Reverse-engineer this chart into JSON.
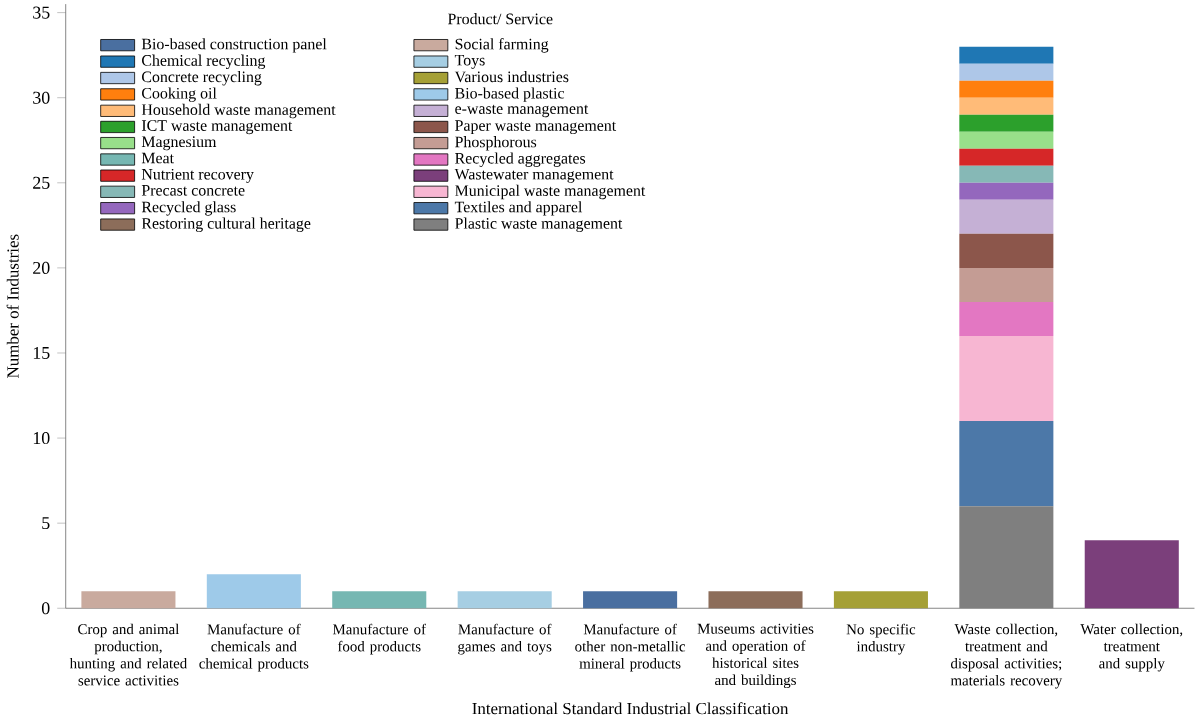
{
  "chart_data": {
    "type": "bar",
    "stacked": true,
    "xlabel": "International Standard Industrial Classification",
    "ylabel": "Number of Industries",
    "legend_title": "Product/ Service",
    "legend": "top left",
    "categories": [
      "Crop and animal production, hunting and related service activities",
      "Manufacture of chemicals and chemical products",
      "Manufacture of food products",
      "Manufacture of games and toys",
      "Manufacture of other non-metallic mineral products",
      "Museums activities and operation of historical sites and buildings",
      "No specific industry",
      "Waste collection, treatment and disposal activities; materials recovery",
      "Water collection, treatment and supply"
    ],
    "ylim": [
      0,
      35.5
    ],
    "yticks": [
      0,
      5,
      10,
      15,
      20,
      25,
      30,
      35
    ],
    "grid": false,
    "series": [
      {
        "name": "Plastic waste management",
        "color": "#7f7f7f",
        "values": [
          null,
          null,
          null,
          null,
          null,
          null,
          null,
          6,
          null
        ]
      },
      {
        "name": "Textiles and apparel",
        "color": "#4c78a8",
        "values": [
          null,
          null,
          null,
          null,
          null,
          null,
          null,
          5,
          null
        ]
      },
      {
        "name": "Municipal waste management",
        "color": "#f7b6d2",
        "values": [
          null,
          null,
          null,
          null,
          null,
          null,
          null,
          5,
          null
        ]
      },
      {
        "name": "Wastewater management",
        "color": "#7b3f7b",
        "values": [
          null,
          null,
          null,
          null,
          null,
          null,
          null,
          null,
          4
        ]
      },
      {
        "name": "Recycled aggregates",
        "color": "#e377c2",
        "values": [
          null,
          null,
          null,
          null,
          null,
          null,
          null,
          2,
          null
        ]
      },
      {
        "name": "Phosphorous",
        "color": "#c49c94",
        "values": [
          null,
          null,
          null,
          null,
          null,
          null,
          null,
          2,
          null
        ]
      },
      {
        "name": "Paper waste management",
        "color": "#8c564b",
        "values": [
          null,
          null,
          null,
          null,
          null,
          null,
          null,
          2,
          null
        ]
      },
      {
        "name": "e-waste management",
        "color": "#c5b0d5",
        "values": [
          null,
          null,
          null,
          null,
          null,
          null,
          null,
          2,
          null
        ]
      },
      {
        "name": "Bio-based plastic",
        "color": "#9ecae9",
        "values": [
          null,
          2,
          null,
          null,
          null,
          null,
          null,
          null,
          null
        ]
      },
      {
        "name": "Various industries",
        "color": "#a5a036",
        "values": [
          null,
          null,
          null,
          null,
          null,
          null,
          1,
          null,
          null
        ]
      },
      {
        "name": "Toys",
        "color": "#a6cee3",
        "values": [
          null,
          null,
          null,
          1,
          null,
          null,
          null,
          null,
          null
        ]
      },
      {
        "name": "Social farming",
        "color": "#c9aa9e",
        "values": [
          1,
          null,
          null,
          null,
          null,
          null,
          null,
          null,
          null
        ]
      },
      {
        "name": "Restoring cultural heritage",
        "color": "#8c6d5a",
        "values": [
          null,
          null,
          null,
          null,
          null,
          1,
          null,
          null,
          null
        ]
      },
      {
        "name": "Recycled glass",
        "color": "#9467bd",
        "values": [
          null,
          null,
          null,
          null,
          null,
          null,
          null,
          1,
          null
        ]
      },
      {
        "name": "Precast concrete",
        "color": "#86b8b6",
        "values": [
          null,
          null,
          null,
          null,
          null,
          null,
          null,
          1,
          null
        ]
      },
      {
        "name": "Nutrient recovery",
        "color": "#d62728",
        "values": [
          null,
          null,
          null,
          null,
          null,
          null,
          null,
          1,
          null
        ]
      },
      {
        "name": "Meat",
        "color": "#76b7b2",
        "values": [
          null,
          null,
          1,
          null,
          null,
          null,
          null,
          null,
          null
        ]
      },
      {
        "name": "Magnesium",
        "color": "#98df8a",
        "values": [
          null,
          null,
          null,
          null,
          null,
          null,
          null,
          1,
          null
        ]
      },
      {
        "name": "ICT waste management",
        "color": "#2ca02c",
        "values": [
          null,
          null,
          null,
          null,
          null,
          null,
          null,
          1,
          null
        ]
      },
      {
        "name": "Household waste management",
        "color": "#ffbb78",
        "values": [
          null,
          null,
          null,
          null,
          null,
          null,
          null,
          1,
          null
        ]
      },
      {
        "name": "Cooking oil",
        "color": "#ff7f0e",
        "values": [
          null,
          null,
          null,
          null,
          null,
          null,
          null,
          1,
          null
        ]
      },
      {
        "name": "Concrete recycling",
        "color": "#aec7e8",
        "values": [
          null,
          null,
          null,
          null,
          null,
          null,
          null,
          1,
          null
        ]
      },
      {
        "name": "Chemical recycling",
        "color": "#1f77b4",
        "values": [
          null,
          null,
          null,
          null,
          null,
          null,
          null,
          1,
          null
        ]
      },
      {
        "name": "Bio-based construction panel",
        "color": "#4a6fa0",
        "values": [
          null,
          null,
          null,
          null,
          1,
          null,
          null,
          null,
          null
        ]
      }
    ]
  }
}
